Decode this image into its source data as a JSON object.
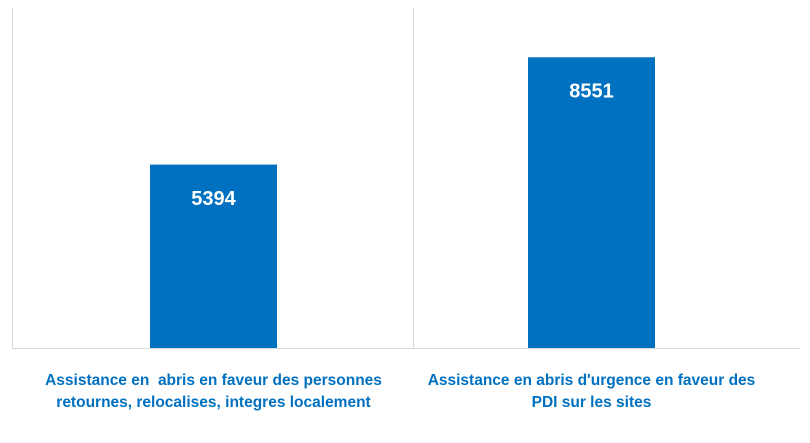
{
  "chart_data": {
    "type": "bar",
    "categories": [
      "Assistance en  abris en faveur des personnes retournes, relocalises, integres localement",
      "Assistance en abris d'urgence en faveur des PDI sur les sites"
    ],
    "values": [
      5394,
      8551
    ],
    "color": "#0070c0",
    "label_color": "#0070c0",
    "ylim": [
      0,
      10000
    ]
  }
}
